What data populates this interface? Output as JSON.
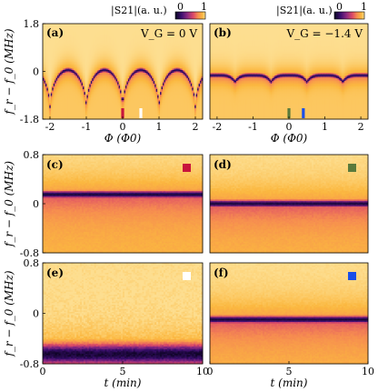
{
  "colors": {
    "cmap": [
      "#0b0420",
      "#3b0f6f",
      "#8c2981",
      "#dd4a68",
      "#f68c50",
      "#fbb840",
      "#fdde90"
    ],
    "markers": {
      "c": "#c8143c",
      "d": "#5a7a3c",
      "e": "#ffffff",
      "f": "#1a4fe8"
    }
  },
  "colorbar": {
    "label_a": "|S21|(a. u.)",
    "label_b": "|S21|(a. u.)",
    "min": "0",
    "max": "1"
  },
  "chart_data": [
    {
      "panel": "a",
      "type": "heatmap",
      "label": "(a)",
      "annotation": "V_G = 0 V",
      "xlabel": "Φ (Φ0)",
      "ylabel": "f_r − f_0 (MHz)",
      "xlim": [
        -2.2,
        2.2
      ],
      "ylim": [
        -1.8,
        1.8
      ],
      "xticks": [
        "-2",
        "-1",
        "0",
        "1",
        "2"
      ],
      "yticks": [
        "1.8",
        "0",
        "-1.8"
      ],
      "resonance": {
        "period": 1,
        "center_offset": 0,
        "depth": 1.5,
        "baseline": 0.0
      },
      "markers": [
        {
          "x": 0.0,
          "color": "#c8143c"
        },
        {
          "x": 0.5,
          "color": "#ffffff"
        }
      ]
    },
    {
      "panel": "b",
      "type": "heatmap",
      "label": "(b)",
      "annotation": "V_G = −1.4 V",
      "xlabel": "Φ (Φ0)",
      "ylabel": "",
      "xlim": [
        -2.2,
        2.2
      ],
      "ylim": [
        -1.8,
        1.8
      ],
      "xticks": [
        "-2",
        "-1",
        "0",
        "1",
        "2"
      ],
      "yticks": [],
      "resonance": {
        "period": 1,
        "center_offset": 0,
        "depth": 0.3,
        "baseline": -0.15
      },
      "markers": [
        {
          "x": 0.0,
          "color": "#5a7a3c"
        },
        {
          "x": 0.4,
          "color": "#1a4fe8"
        }
      ]
    },
    {
      "panel": "c",
      "type": "heatmap",
      "label": "(c)",
      "xlabel": "",
      "ylabel": "f_r − f_0 (MHz)",
      "xlim": [
        0,
        10
      ],
      "ylim": [
        -0.8,
        0.8
      ],
      "xticks": [],
      "yticks": [
        "0.8",
        "0",
        "-0.8"
      ],
      "resonance_center": 0.15,
      "marker_color": "#c8143c"
    },
    {
      "panel": "d",
      "type": "heatmap",
      "label": "(d)",
      "xlabel": "",
      "ylabel": "",
      "xlim": [
        0,
        10
      ],
      "ylim": [
        -0.8,
        0.8
      ],
      "xticks": [],
      "yticks": [],
      "resonance_center": 0.0,
      "marker_color": "#5a7a3c"
    },
    {
      "panel": "e",
      "type": "heatmap",
      "label": "(e)",
      "xlabel": "t (min)",
      "ylabel": "f_r − f_0 (MHz)",
      "xlim": [
        0,
        10
      ],
      "ylim": [
        -0.8,
        0.8
      ],
      "xticks": [
        "0",
        "5",
        "10"
      ],
      "yticks": [
        "0.8",
        "0",
        "-0.8"
      ],
      "resonance_center": -0.65,
      "marker_color": "#ffffff"
    },
    {
      "panel": "f",
      "type": "heatmap",
      "label": "(f)",
      "xlabel": "t (min)",
      "ylabel": "",
      "xlim": [
        0,
        10
      ],
      "ylim": [
        -0.8,
        0.8
      ],
      "xticks": [
        "0",
        "5",
        "10"
      ],
      "yticks": [],
      "resonance_center": -0.1,
      "marker_color": "#1a4fe8"
    }
  ]
}
